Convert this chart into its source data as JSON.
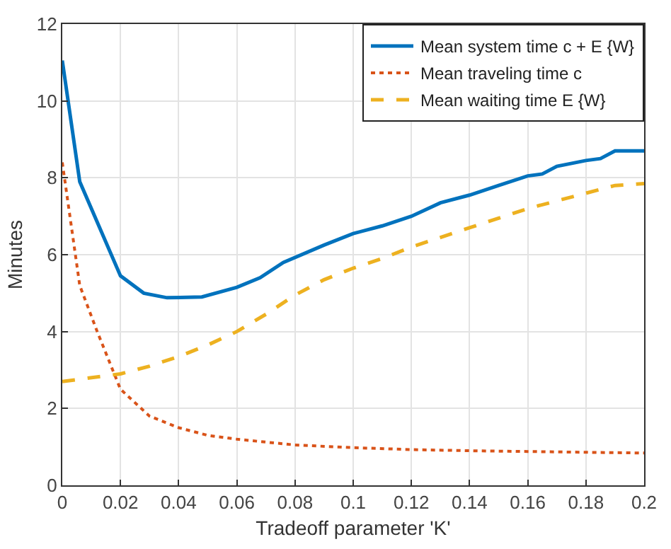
{
  "chart_data": {
    "type": "line",
    "xlabel": "Tradeoff parameter 'K'",
    "ylabel": "Minutes",
    "xlim": [
      0,
      0.2
    ],
    "xticks": [
      0,
      0.02,
      0.04,
      0.06,
      0.08,
      0.1,
      0.12,
      0.14,
      0.16,
      0.18,
      0.2
    ],
    "ylim": [
      0,
      12
    ],
    "yticks": [
      0,
      2,
      4,
      6,
      8,
      10,
      12
    ],
    "grid": true,
    "legend": "top right",
    "series": [
      {
        "name": "Mean system time c + E {W}",
        "color": "#0072bd",
        "line_style": "solid",
        "x": [
          0,
          0.006,
          0.02,
          0.028,
          0.036,
          0.048,
          0.06,
          0.068,
          0.076,
          0.09,
          0.1,
          0.11,
          0.12,
          0.13,
          0.14,
          0.15,
          0.16,
          0.165,
          0.17,
          0.18,
          0.185,
          0.19,
          0.2
        ],
        "values": [
          11.05,
          7.9,
          5.45,
          5.0,
          4.88,
          4.9,
          5.15,
          5.4,
          5.8,
          6.25,
          6.55,
          6.75,
          7.0,
          7.35,
          7.55,
          7.8,
          8.05,
          8.1,
          8.3,
          8.45,
          8.5,
          8.7,
          8.7
        ]
      },
      {
        "name": "Mean traveling time c",
        "color": "#d95319",
        "line_style": "dotted",
        "x": [
          0,
          0.006,
          0.012,
          0.02,
          0.03,
          0.04,
          0.05,
          0.06,
          0.08,
          0.1,
          0.12,
          0.14,
          0.16,
          0.18,
          0.2
        ],
        "values": [
          8.4,
          5.2,
          4.0,
          2.5,
          1.8,
          1.5,
          1.3,
          1.2,
          1.05,
          0.98,
          0.93,
          0.9,
          0.88,
          0.86,
          0.84
        ]
      },
      {
        "name": "Mean waiting time E {W}",
        "color": "#edb120",
        "line_style": "dashed",
        "x": [
          0,
          0.02,
          0.03,
          0.04,
          0.05,
          0.06,
          0.07,
          0.08,
          0.09,
          0.1,
          0.11,
          0.12,
          0.13,
          0.14,
          0.15,
          0.16,
          0.17,
          0.18,
          0.19,
          0.2
        ],
        "values": [
          2.7,
          2.9,
          3.1,
          3.35,
          3.65,
          4.0,
          4.45,
          4.95,
          5.35,
          5.65,
          5.9,
          6.2,
          6.45,
          6.7,
          6.95,
          7.2,
          7.4,
          7.6,
          7.8,
          7.85
        ]
      }
    ]
  }
}
